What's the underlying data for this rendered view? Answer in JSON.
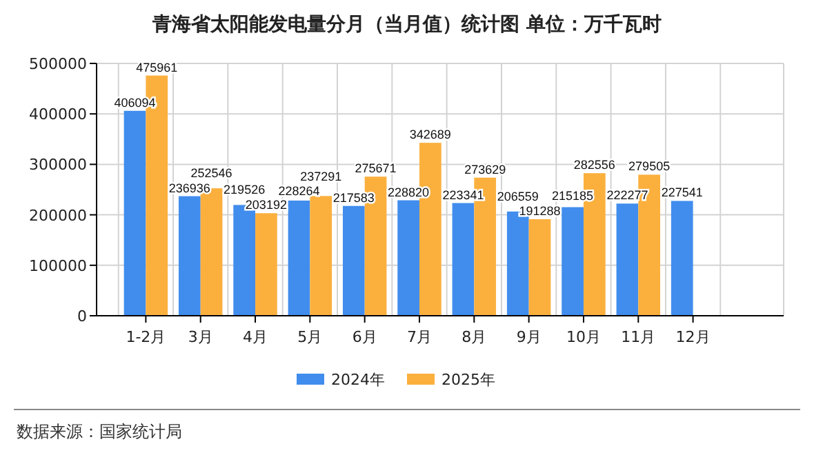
{
  "chart_data": {
    "type": "bar",
    "title": "青海省太阳能发电量分月（当月值）统计图  单位：万千瓦时",
    "categories": [
      "1-2月",
      "3月",
      "4月",
      "5月",
      "6月",
      "7月",
      "8月",
      "9月",
      "10月",
      "11月",
      "12月"
    ],
    "series": [
      {
        "name": "2024年",
        "color": "#418ded",
        "values": [
          406094,
          236936,
          219526,
          228264,
          217583,
          228820,
          223341,
          206559,
          215185,
          222277,
          227541
        ]
      },
      {
        "name": "2025年",
        "color": "#fbb03e",
        "values": [
          475961,
          252546,
          203192,
          237291,
          275671,
          342689,
          273629,
          191288,
          282556,
          279505,
          null
        ]
      }
    ],
    "ylim": [
      0,
      500000
    ],
    "yticks": [
      0,
      100000,
      200000,
      300000,
      400000,
      500000
    ],
    "grid": true,
    "legend": "bottom",
    "data_labels": true,
    "annotations": [
      "数据来源：国家统计局"
    ]
  }
}
